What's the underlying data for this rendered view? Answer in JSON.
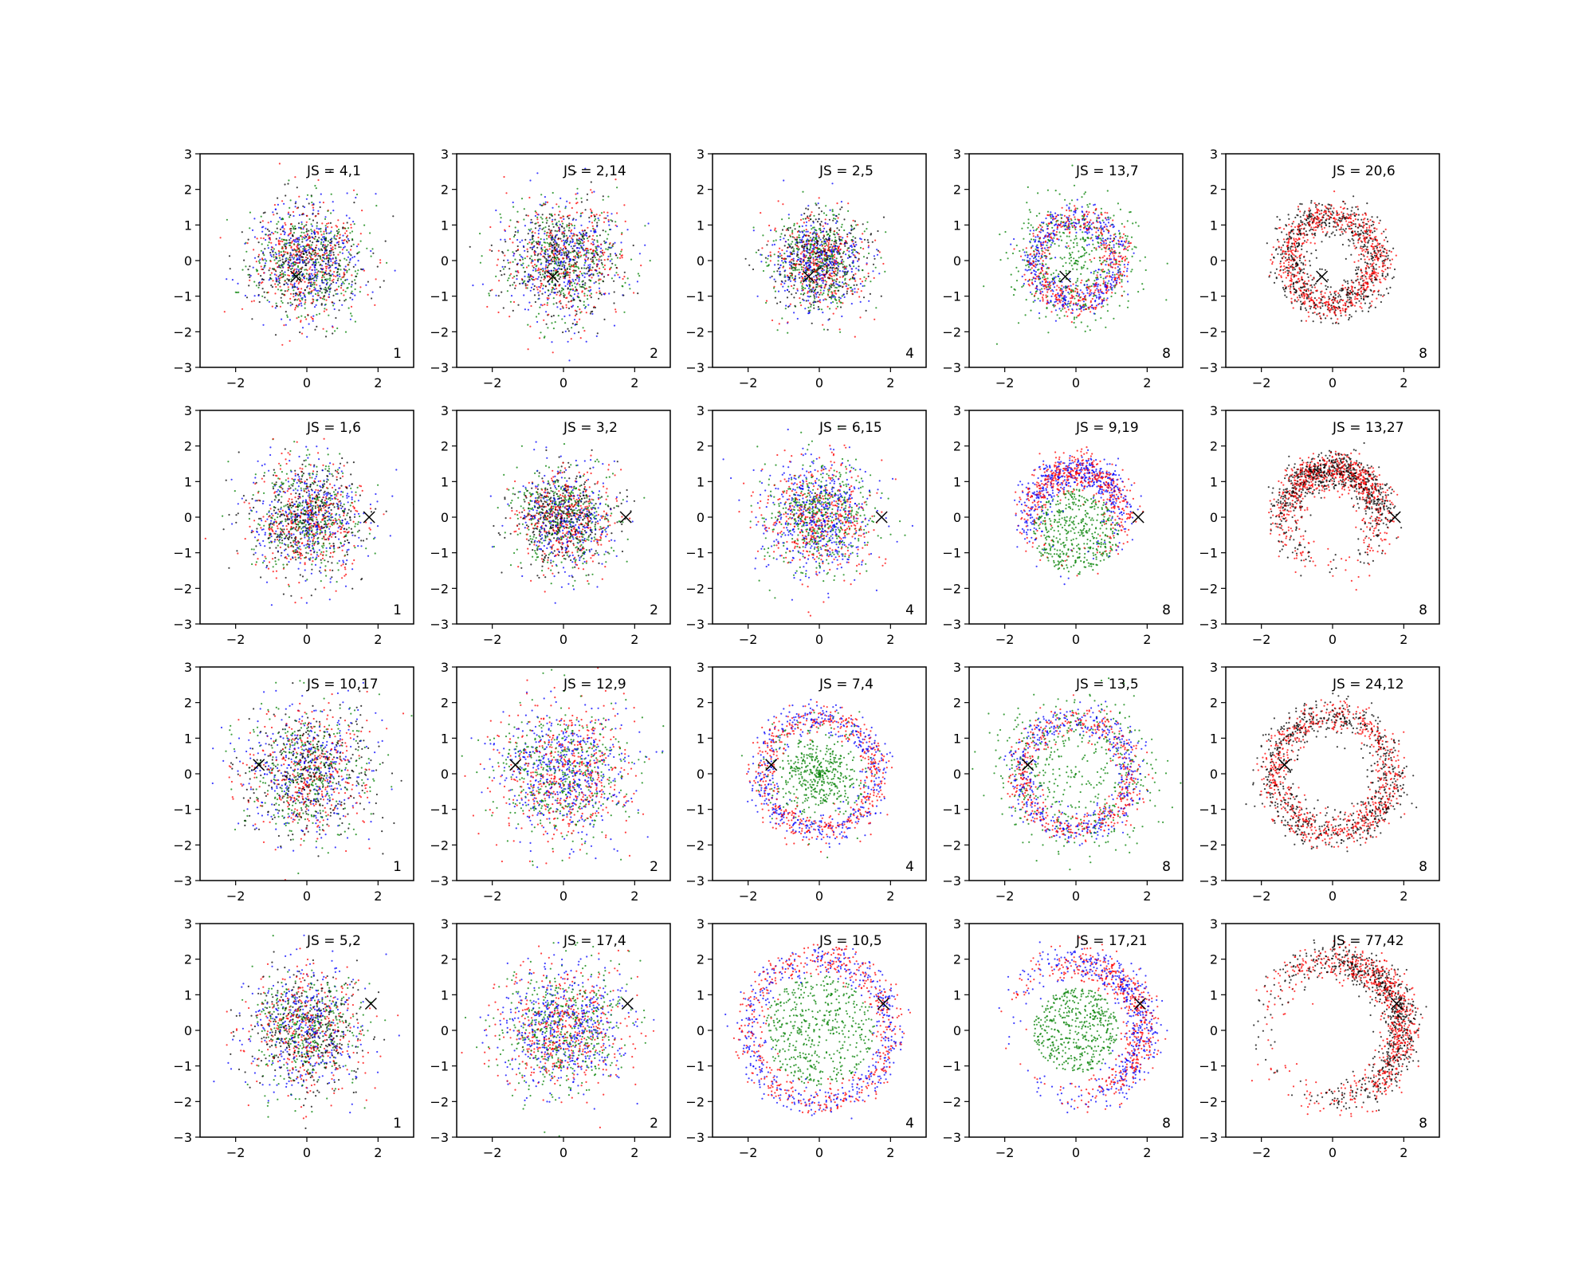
{
  "figure": {
    "rows": 4,
    "cols": 5,
    "xlim": [
      -3,
      3
    ],
    "ylim": [
      -3,
      3
    ],
    "x_ticks": [
      -2,
      0,
      2
    ],
    "y_ticks": [
      -3,
      -2,
      -1,
      0,
      1,
      2,
      3
    ],
    "colors": {
      "series_a": "#ff0000",
      "series_b": "#0000ff",
      "series_c": "#008000",
      "series_d": "#000000",
      "marker": "#000000"
    }
  },
  "chart_data": [
    {
      "type": "scatter",
      "row": 1,
      "col": 1,
      "js_label": "JS = 4,1",
      "corner_label": "1",
      "marker": {
        "x": -0.3,
        "y": -0.45
      },
      "distribution": {
        "shape": "disk",
        "center": [
          0,
          0
        ],
        "spread": 1.0,
        "series": [
          "red",
          "blue",
          "green",
          "black"
        ]
      }
    },
    {
      "type": "scatter",
      "row": 1,
      "col": 2,
      "js_label": "JS = 2,14",
      "corner_label": "2",
      "marker": {
        "x": -0.3,
        "y": -0.45
      },
      "distribution": {
        "shape": "disk",
        "center": [
          0,
          0
        ],
        "spread": 1.05,
        "series": [
          "red",
          "blue",
          "green",
          "black"
        ]
      }
    },
    {
      "type": "scatter",
      "row": 1,
      "col": 3,
      "js_label": "JS = 2,5",
      "corner_label": "4",
      "marker": {
        "x": -0.3,
        "y": -0.45
      },
      "distribution": {
        "shape": "disk",
        "center": [
          0,
          0
        ],
        "spread": 0.85,
        "series": [
          "red",
          "blue",
          "green",
          "black"
        ]
      }
    },
    {
      "type": "scatter",
      "row": 1,
      "col": 4,
      "js_label": "JS = 13,7",
      "corner_label": "8",
      "marker": {
        "x": -0.3,
        "y": -0.45
      },
      "distribution": {
        "shape": "ring",
        "center": [
          0,
          0
        ],
        "radius": 1.15,
        "series": [
          "red",
          "blue",
          "green"
        ]
      }
    },
    {
      "type": "scatter",
      "row": 1,
      "col": 5,
      "js_label": "JS = 20,6",
      "corner_label": "8",
      "marker": {
        "x": -0.3,
        "y": -0.45
      },
      "distribution": {
        "shape": "ring",
        "center": [
          0,
          0
        ],
        "radius": 1.25,
        "series": [
          "red",
          "black"
        ]
      }
    },
    {
      "type": "scatter",
      "row": 2,
      "col": 1,
      "js_label": "JS = 1,6",
      "corner_label": "1",
      "marker": {
        "x": 1.75,
        "y": 0.0
      },
      "distribution": {
        "shape": "disk",
        "center": [
          0,
          0
        ],
        "spread": 1.0,
        "series": [
          "red",
          "blue",
          "green",
          "black"
        ]
      }
    },
    {
      "type": "scatter",
      "row": 2,
      "col": 2,
      "js_label": "JS = 3,2",
      "corner_label": "2",
      "marker": {
        "x": 1.75,
        "y": 0.0
      },
      "distribution": {
        "shape": "disk",
        "center": [
          0,
          0
        ],
        "spread": 0.9,
        "series": [
          "red",
          "blue",
          "green",
          "black"
        ]
      }
    },
    {
      "type": "scatter",
      "row": 2,
      "col": 3,
      "js_label": "JS = 6,15",
      "corner_label": "4",
      "marker": {
        "x": 1.75,
        "y": 0.0
      },
      "distribution": {
        "shape": "disk",
        "center": [
          0,
          0
        ],
        "spread": 1.0,
        "series": [
          "red",
          "blue",
          "green"
        ]
      }
    },
    {
      "type": "scatter",
      "row": 2,
      "col": 4,
      "js_label": "JS = 9,19",
      "corner_label": "8",
      "marker": {
        "x": 1.75,
        "y": 0.0
      },
      "distribution": {
        "shape": "arc",
        "center": [
          0,
          0
        ],
        "radius": 1.3,
        "series": [
          "red",
          "blue",
          "green"
        ]
      }
    },
    {
      "type": "scatter",
      "row": 2,
      "col": 5,
      "js_label": "JS = 13,27",
      "corner_label": "8",
      "marker": {
        "x": 1.75,
        "y": 0.0
      },
      "distribution": {
        "shape": "arc",
        "center": [
          0,
          0
        ],
        "radius": 1.35,
        "series": [
          "red",
          "black"
        ]
      }
    },
    {
      "type": "scatter",
      "row": 3,
      "col": 1,
      "js_label": "JS = 10,17",
      "corner_label": "1",
      "marker": {
        "x": -1.35,
        "y": 0.25
      },
      "distribution": {
        "shape": "disk",
        "center": [
          0,
          0
        ],
        "spread": 1.15,
        "series": [
          "red",
          "blue",
          "green",
          "black"
        ]
      }
    },
    {
      "type": "scatter",
      "row": 3,
      "col": 2,
      "js_label": "JS = 12,9",
      "corner_label": "2",
      "marker": {
        "x": -1.35,
        "y": 0.25
      },
      "distribution": {
        "shape": "disk",
        "center": [
          0,
          0
        ],
        "spread": 1.2,
        "series": [
          "red",
          "blue",
          "green"
        ]
      }
    },
    {
      "type": "scatter",
      "row": 3,
      "col": 3,
      "js_label": "JS = 7,4",
      "corner_label": "4",
      "marker": {
        "x": -1.35,
        "y": 0.25
      },
      "distribution": {
        "shape": "ring",
        "center": [
          0,
          0
        ],
        "radius": 1.6,
        "series": [
          "red",
          "blue",
          "green"
        ]
      }
    },
    {
      "type": "scatter",
      "row": 3,
      "col": 4,
      "js_label": "JS = 13,5",
      "corner_label": "8",
      "marker": {
        "x": -1.35,
        "y": 0.25
      },
      "distribution": {
        "shape": "ring",
        "center": [
          0,
          0
        ],
        "radius": 1.55,
        "series": [
          "red",
          "blue",
          "green"
        ]
      }
    },
    {
      "type": "scatter",
      "row": 3,
      "col": 5,
      "js_label": "JS = 24,12",
      "corner_label": "8",
      "marker": {
        "x": -1.35,
        "y": 0.25
      },
      "distribution": {
        "shape": "ring",
        "center": [
          0,
          0
        ],
        "radius": 1.65,
        "series": [
          "red",
          "black"
        ]
      }
    },
    {
      "type": "scatter",
      "row": 4,
      "col": 1,
      "js_label": "JS = 5,2",
      "corner_label": "1",
      "marker": {
        "x": 1.8,
        "y": 0.75
      },
      "distribution": {
        "shape": "disk",
        "center": [
          0,
          0
        ],
        "spread": 1.05,
        "series": [
          "red",
          "blue",
          "green",
          "black"
        ]
      }
    },
    {
      "type": "scatter",
      "row": 4,
      "col": 2,
      "js_label": "JS = 17,4",
      "corner_label": "2",
      "marker": {
        "x": 1.8,
        "y": 0.75
      },
      "distribution": {
        "shape": "disk",
        "center": [
          0,
          0
        ],
        "spread": 1.15,
        "series": [
          "red",
          "blue",
          "green"
        ]
      }
    },
    {
      "type": "scatter",
      "row": 4,
      "col": 3,
      "js_label": "JS = 10,5",
      "corner_label": "4",
      "marker": {
        "x": 1.8,
        "y": 0.75
      },
      "distribution": {
        "shape": "ring",
        "center": [
          0,
          0
        ],
        "radius": 2.0,
        "series": [
          "red",
          "blue",
          "green"
        ]
      }
    },
    {
      "type": "scatter",
      "row": 4,
      "col": 4,
      "js_label": "JS = 17,21",
      "corner_label": "8",
      "marker": {
        "x": 1.8,
        "y": 0.75
      },
      "distribution": {
        "shape": "arc",
        "center": [
          0,
          0
        ],
        "radius": 1.9,
        "series": [
          "red",
          "blue",
          "green"
        ]
      }
    },
    {
      "type": "scatter",
      "row": 4,
      "col": 5,
      "js_label": "JS = 77,42",
      "corner_label": "8",
      "marker": {
        "x": 1.8,
        "y": 0.75
      },
      "distribution": {
        "shape": "arc",
        "center": [
          0,
          0
        ],
        "radius": 1.95,
        "series": [
          "red",
          "black"
        ]
      }
    }
  ]
}
